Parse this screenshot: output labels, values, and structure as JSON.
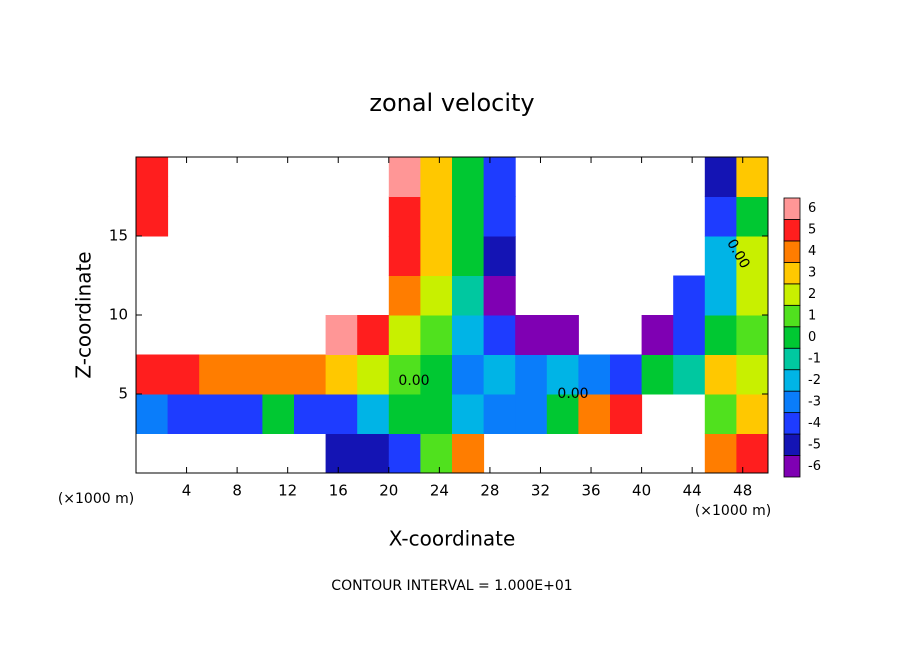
{
  "chart_data": {
    "type": "contour",
    "title": "zonal velocity",
    "x_label": "X-coordinate",
    "y_label": "Z-coordinate",
    "unit_labels": [
      "(×1000 m)",
      "(×1000 m)"
    ],
    "footer": "CONTOUR INTERVAL = 1.000E+01",
    "contour_labels": [
      "0.00",
      "0.00",
      "0.00"
    ],
    "xlim": [
      0,
      50
    ],
    "xticks": [
      4,
      8,
      12,
      16,
      20,
      24,
      28,
      32,
      36,
      40,
      44,
      48
    ],
    "ylim": [
      0,
      20
    ],
    "yticks": [
      5,
      10,
      15
    ],
    "colorbar_ticks": [
      -6,
      -5,
      -4,
      -3,
      -2,
      -1,
      0,
      1,
      2,
      3,
      4,
      5,
      6
    ],
    "colors": [
      "#7f00b3",
      "#1414b4",
      "#1e3cff",
      "#0a7dfa",
      "#00b4e6",
      "#00c8a0",
      "#00c832",
      "#50e11e",
      "#c8f000",
      "#ffc800",
      "#ff7d00",
      "#ff1e1e",
      "#ff9696"
    ],
    "x": [
      1.25,
      3.75,
      6.25,
      8.75,
      11.25,
      13.75,
      16.25,
      18.75,
      21.25,
      23.75,
      26.25,
      28.75,
      31.25,
      33.75,
      36.25,
      38.75,
      41.25,
      43.75,
      46.25,
      48.75
    ],
    "y": [
      1.25,
      3.75,
      6.25,
      8.75,
      11.25,
      13.75,
      16.25,
      18.75
    ],
    "z": [
      [
        null,
        null,
        null,
        null,
        null,
        null,
        -5,
        -5,
        -4,
        1,
        4,
        null,
        null,
        null,
        null,
        null,
        null,
        null,
        4,
        5
      ],
      [
        -3,
        -4,
        -4,
        -4,
        0,
        -4,
        -4,
        -2,
        0,
        0,
        -2,
        -3,
        -3,
        0,
        4,
        5,
        null,
        null,
        1,
        3
      ],
      [
        5,
        5,
        4,
        4,
        4,
        4,
        3,
        2,
        1,
        0,
        -3,
        -2,
        -3,
        -2,
        -3,
        -4,
        0,
        -1,
        3,
        2
      ],
      [
        null,
        null,
        null,
        null,
        null,
        null,
        6,
        5,
        2,
        1,
        -2,
        -4,
        -6,
        -6,
        null,
        null,
        -6,
        -4,
        0,
        1
      ],
      [
        null,
        null,
        null,
        null,
        null,
        null,
        null,
        null,
        4,
        2,
        -1,
        -6,
        null,
        null,
        null,
        null,
        null,
        -4,
        -2,
        2
      ],
      [
        null,
        null,
        null,
        null,
        null,
        null,
        null,
        null,
        5,
        3,
        0,
        -5,
        null,
        null,
        null,
        null,
        null,
        null,
        -2,
        2
      ],
      [
        5,
        null,
        null,
        null,
        null,
        null,
        null,
        null,
        5,
        3,
        0,
        -4,
        null,
        null,
        null,
        null,
        null,
        null,
        -4,
        0
      ],
      [
        5,
        null,
        null,
        null,
        null,
        null,
        null,
        null,
        6,
        3,
        0,
        -4,
        null,
        null,
        null,
        null,
        null,
        null,
        -5,
        3
      ]
    ]
  }
}
